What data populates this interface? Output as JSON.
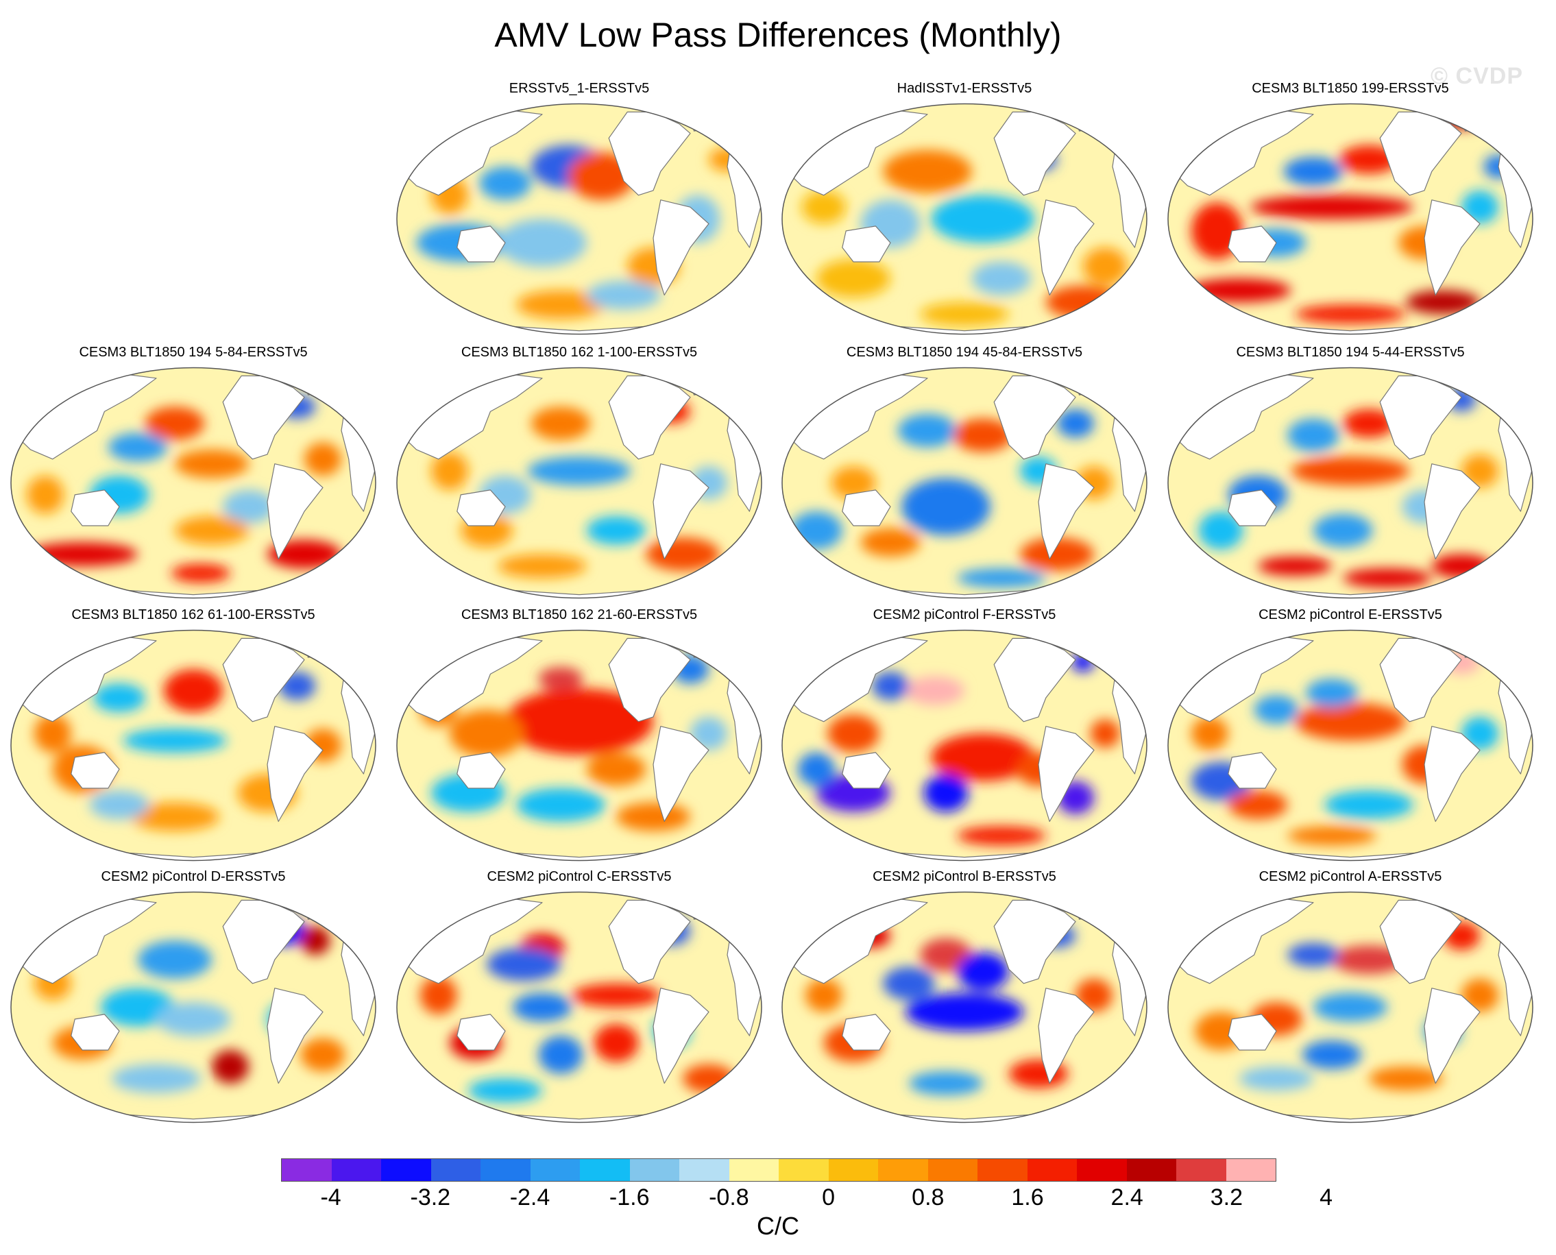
{
  "title": "AMV Low Pass Differences (Monthly)",
  "watermark": "© CVDP",
  "panels": [
    {
      "label": "ERSSTv5_1-ERSSTv5",
      "blobs": [
        [
          0.47,
          0.28,
          0.1,
          0.09,
          -2.4
        ],
        [
          0.56,
          0.32,
          0.09,
          0.1,
          2.0
        ],
        [
          0.3,
          0.35,
          0.07,
          0.07,
          -1.6
        ],
        [
          0.18,
          0.6,
          0.12,
          0.08,
          -1.6
        ],
        [
          0.4,
          0.6,
          0.12,
          0.1,
          -0.8
        ],
        [
          0.7,
          0.7,
          0.07,
          0.08,
          1.2
        ],
        [
          0.82,
          0.5,
          0.06,
          0.1,
          -0.8
        ],
        [
          0.9,
          0.25,
          0.05,
          0.05,
          1.2
        ],
        [
          0.45,
          0.86,
          0.12,
          0.06,
          1.0
        ],
        [
          0.62,
          0.82,
          0.1,
          0.06,
          -0.8
        ],
        [
          0.15,
          0.4,
          0.05,
          0.08,
          1.0
        ]
      ]
    },
    {
      "label": "HadISSTv1-ERSSTv5",
      "blobs": [
        [
          0.4,
          0.3,
          0.12,
          0.09,
          1.4
        ],
        [
          0.55,
          0.5,
          0.14,
          0.1,
          -1.2
        ],
        [
          0.3,
          0.52,
          0.08,
          0.1,
          -0.8
        ],
        [
          0.7,
          0.25,
          0.05,
          0.05,
          -2.4
        ],
        [
          0.82,
          0.85,
          0.1,
          0.07,
          2.0
        ],
        [
          0.88,
          0.7,
          0.06,
          0.08,
          1.2
        ],
        [
          0.2,
          0.75,
          0.1,
          0.08,
          0.8
        ],
        [
          0.6,
          0.75,
          0.08,
          0.07,
          -0.8
        ],
        [
          0.5,
          0.9,
          0.12,
          0.05,
          0.8
        ],
        [
          0.12,
          0.45,
          0.06,
          0.07,
          0.8
        ]
      ]
    },
    {
      "label": "CESM3 BLT1850 199-ERSSTv5",
      "blobs": [
        [
          0.45,
          0.45,
          0.22,
          0.05,
          2.6
        ],
        [
          0.14,
          0.55,
          0.07,
          0.12,
          2.4
        ],
        [
          0.2,
          0.8,
          0.14,
          0.05,
          2.8
        ],
        [
          0.5,
          0.9,
          0.15,
          0.04,
          2.4
        ],
        [
          0.75,
          0.85,
          0.1,
          0.05,
          3.0
        ],
        [
          0.4,
          0.3,
          0.08,
          0.06,
          -2.2
        ],
        [
          0.55,
          0.25,
          0.08,
          0.06,
          2.2
        ],
        [
          0.8,
          0.08,
          0.06,
          0.04,
          3.2
        ],
        [
          0.3,
          0.6,
          0.08,
          0.06,
          -1.6
        ],
        [
          0.7,
          0.6,
          0.07,
          0.07,
          1.6
        ],
        [
          0.85,
          0.45,
          0.05,
          0.07,
          -1.2
        ],
        [
          0.9,
          0.28,
          0.04,
          0.05,
          -2.0
        ]
      ]
    },
    {
      "label": "CESM3 BLT1850 194 5-84-ERSSTv5",
      "blobs": [
        [
          0.45,
          0.25,
          0.08,
          0.07,
          2.0
        ],
        [
          0.35,
          0.35,
          0.08,
          0.06,
          -1.6
        ],
        [
          0.55,
          0.42,
          0.1,
          0.06,
          1.6
        ],
        [
          0.2,
          0.8,
          0.15,
          0.05,
          2.6
        ],
        [
          0.8,
          0.8,
          0.1,
          0.06,
          2.8
        ],
        [
          0.52,
          0.88,
          0.08,
          0.04,
          2.4
        ],
        [
          0.78,
          0.18,
          0.05,
          0.05,
          -2.4
        ],
        [
          0.85,
          0.4,
          0.05,
          0.07,
          1.6
        ],
        [
          0.3,
          0.55,
          0.08,
          0.08,
          -1.2
        ],
        [
          0.65,
          0.6,
          0.07,
          0.07,
          -0.8
        ],
        [
          0.1,
          0.55,
          0.05,
          0.08,
          1.2
        ],
        [
          0.55,
          0.7,
          0.1,
          0.06,
          1.2
        ]
      ]
    },
    {
      "label": "CESM3 BLT1850 162 1-100-ERSSTv5",
      "blobs": [
        [
          0.5,
          0.45,
          0.14,
          0.06,
          -1.8
        ],
        [
          0.45,
          0.25,
          0.08,
          0.07,
          1.4
        ],
        [
          0.75,
          0.2,
          0.05,
          0.05,
          2.4
        ],
        [
          0.3,
          0.55,
          0.07,
          0.08,
          -0.8
        ],
        [
          0.78,
          0.8,
          0.1,
          0.07,
          2.0
        ],
        [
          0.4,
          0.85,
          0.12,
          0.05,
          1.2
        ],
        [
          0.15,
          0.45,
          0.05,
          0.08,
          1.2
        ],
        [
          0.6,
          0.7,
          0.08,
          0.06,
          -1.2
        ],
        [
          0.85,
          0.5,
          0.05,
          0.07,
          -0.8
        ],
        [
          0.25,
          0.7,
          0.07,
          0.07,
          1.0
        ]
      ]
    },
    {
      "label": "CESM3 BLT1850 194 45-84-ERSSTv5",
      "blobs": [
        [
          0.45,
          0.6,
          0.12,
          0.12,
          -2.0
        ],
        [
          0.4,
          0.28,
          0.08,
          0.07,
          -1.6
        ],
        [
          0.55,
          0.3,
          0.08,
          0.07,
          1.8
        ],
        [
          0.1,
          0.7,
          0.07,
          0.08,
          -1.8
        ],
        [
          0.75,
          0.8,
          0.1,
          0.07,
          2.0
        ],
        [
          0.3,
          0.75,
          0.08,
          0.06,
          1.6
        ],
        [
          0.6,
          0.9,
          0.12,
          0.04,
          -1.6
        ],
        [
          0.8,
          0.25,
          0.05,
          0.06,
          -2.0
        ],
        [
          0.85,
          0.5,
          0.05,
          0.07,
          1.2
        ],
        [
          0.2,
          0.5,
          0.06,
          0.07,
          1.2
        ],
        [
          0.7,
          0.45,
          0.05,
          0.06,
          -1.2
        ]
      ]
    },
    {
      "label": "CESM3 BLT1850 194 5-44-ERSSTv5",
      "blobs": [
        [
          0.5,
          0.45,
          0.16,
          0.06,
          2.0
        ],
        [
          0.4,
          0.3,
          0.07,
          0.07,
          -1.6
        ],
        [
          0.55,
          0.25,
          0.07,
          0.06,
          2.2
        ],
        [
          0.25,
          0.55,
          0.08,
          0.08,
          -2.0
        ],
        [
          0.35,
          0.85,
          0.1,
          0.04,
          2.8
        ],
        [
          0.6,
          0.9,
          0.12,
          0.04,
          2.6
        ],
        [
          0.8,
          0.85,
          0.08,
          0.05,
          2.6
        ],
        [
          0.48,
          0.7,
          0.08,
          0.07,
          -1.6
        ],
        [
          0.15,
          0.7,
          0.06,
          0.08,
          -1.2
        ],
        [
          0.8,
          0.15,
          0.04,
          0.05,
          -2.6
        ],
        [
          0.85,
          0.45,
          0.05,
          0.07,
          1.2
        ],
        [
          0.7,
          0.6,
          0.06,
          0.07,
          -0.8
        ]
      ]
    },
    {
      "label": "CESM3 BLT1850 162 61-100-ERSSTv5",
      "blobs": [
        [
          0.5,
          0.27,
          0.08,
          0.09,
          2.4
        ],
        [
          0.3,
          0.3,
          0.07,
          0.06,
          -1.2
        ],
        [
          0.45,
          0.48,
          0.14,
          0.05,
          -1.4
        ],
        [
          0.2,
          0.6,
          0.08,
          0.1,
          1.6
        ],
        [
          0.12,
          0.45,
          0.05,
          0.08,
          1.6
        ],
        [
          0.78,
          0.25,
          0.05,
          0.06,
          -2.6
        ],
        [
          0.85,
          0.5,
          0.05,
          0.07,
          1.6
        ],
        [
          0.7,
          0.7,
          0.08,
          0.08,
          1.2
        ],
        [
          0.45,
          0.8,
          0.12,
          0.06,
          1.0
        ],
        [
          0.3,
          0.75,
          0.08,
          0.06,
          -1.0
        ]
      ]
    },
    {
      "label": "CESM3 BLT1850 162 21-60-ERSSTv5",
      "blobs": [
        [
          0.5,
          0.4,
          0.2,
          0.14,
          2.4
        ],
        [
          0.45,
          0.22,
          0.06,
          0.05,
          3.6
        ],
        [
          0.25,
          0.45,
          0.1,
          0.1,
          1.6
        ],
        [
          0.2,
          0.7,
          0.1,
          0.08,
          -1.2
        ],
        [
          0.45,
          0.75,
          0.12,
          0.07,
          -1.4
        ],
        [
          0.7,
          0.8,
          0.1,
          0.06,
          1.6
        ],
        [
          0.8,
          0.18,
          0.05,
          0.06,
          -2.0
        ],
        [
          0.85,
          0.45,
          0.05,
          0.07,
          -0.8
        ],
        [
          0.6,
          0.6,
          0.08,
          0.07,
          1.6
        ],
        [
          0.12,
          0.35,
          0.05,
          0.07,
          1.6
        ]
      ]
    },
    {
      "label": "CESM2 piControl F-ERSSTv5",
      "blobs": [
        [
          0.42,
          0.27,
          0.08,
          0.06,
          3.8
        ],
        [
          0.3,
          0.25,
          0.05,
          0.06,
          -2.4
        ],
        [
          0.55,
          0.55,
          0.14,
          0.1,
          2.4
        ],
        [
          0.2,
          0.7,
          0.1,
          0.08,
          -3.2
        ],
        [
          0.45,
          0.7,
          0.06,
          0.08,
          -2.8
        ],
        [
          0.8,
          0.72,
          0.05,
          0.07,
          -3.2
        ],
        [
          0.7,
          0.6,
          0.06,
          0.07,
          2.0
        ],
        [
          0.2,
          0.45,
          0.07,
          0.08,
          2.0
        ],
        [
          0.6,
          0.88,
          0.12,
          0.04,
          2.2
        ],
        [
          0.1,
          0.6,
          0.05,
          0.07,
          -2.0
        ],
        [
          0.82,
          0.15,
          0.03,
          0.04,
          -3.0
        ],
        [
          0.88,
          0.45,
          0.04,
          0.06,
          2.0
        ]
      ]
    },
    {
      "label": "CESM2 piControl E-ERSSTv5",
      "blobs": [
        [
          0.5,
          0.4,
          0.15,
          0.08,
          2.0
        ],
        [
          0.45,
          0.28,
          0.07,
          0.06,
          -1.6
        ],
        [
          0.3,
          0.35,
          0.06,
          0.06,
          -1.6
        ],
        [
          0.15,
          0.65,
          0.08,
          0.08,
          -2.4
        ],
        [
          0.25,
          0.75,
          0.08,
          0.06,
          2.0
        ],
        [
          0.55,
          0.75,
          0.12,
          0.06,
          -1.4
        ],
        [
          0.7,
          0.58,
          0.06,
          0.08,
          2.0
        ],
        [
          0.8,
          0.15,
          0.05,
          0.05,
          4.0
        ],
        [
          0.85,
          0.45,
          0.05,
          0.07,
          -1.2
        ],
        [
          0.45,
          0.88,
          0.12,
          0.04,
          1.6
        ],
        [
          0.12,
          0.45,
          0.05,
          0.07,
          1.6
        ]
      ]
    },
    {
      "label": "CESM2 piControl D-ERSSTv5",
      "blobs": [
        [
          0.45,
          0.3,
          0.1,
          0.08,
          -1.8
        ],
        [
          0.35,
          0.5,
          0.1,
          0.08,
          -1.2
        ],
        [
          0.6,
          0.75,
          0.05,
          0.07,
          3.0
        ],
        [
          0.2,
          0.65,
          0.08,
          0.07,
          1.6
        ],
        [
          0.75,
          0.18,
          0.05,
          0.06,
          -2.8
        ],
        [
          0.83,
          0.22,
          0.04,
          0.06,
          3.2
        ],
        [
          0.5,
          0.55,
          0.1,
          0.07,
          -0.8
        ],
        [
          0.75,
          0.55,
          0.05,
          0.07,
          -1.2
        ],
        [
          0.85,
          0.7,
          0.06,
          0.07,
          1.6
        ],
        [
          0.12,
          0.4,
          0.05,
          0.07,
          1.2
        ],
        [
          0.4,
          0.8,
          0.12,
          0.06,
          -1.0
        ]
      ]
    },
    {
      "label": "CESM2 piControl C-ERSSTv5",
      "blobs": [
        [
          0.4,
          0.25,
          0.06,
          0.06,
          2.8
        ],
        [
          0.35,
          0.32,
          0.1,
          0.07,
          -2.6
        ],
        [
          0.6,
          0.45,
          0.12,
          0.05,
          2.4
        ],
        [
          0.4,
          0.5,
          0.08,
          0.06,
          -2.0
        ],
        [
          0.22,
          0.65,
          0.07,
          0.07,
          2.8
        ],
        [
          0.6,
          0.65,
          0.06,
          0.08,
          2.4
        ],
        [
          0.45,
          0.7,
          0.06,
          0.08,
          -2.0
        ],
        [
          0.75,
          0.18,
          0.05,
          0.06,
          -2.4
        ],
        [
          0.85,
          0.8,
          0.07,
          0.06,
          2.0
        ],
        [
          0.12,
          0.45,
          0.05,
          0.08,
          2.0
        ],
        [
          0.3,
          0.85,
          0.1,
          0.05,
          -1.2
        ],
        [
          0.75,
          0.6,
          0.05,
          0.07,
          -1.2
        ]
      ]
    },
    {
      "label": "CESM2 piControl B-ERSSTv5",
      "blobs": [
        [
          0.45,
          0.28,
          0.07,
          0.07,
          3.4
        ],
        [
          0.55,
          0.35,
          0.07,
          0.08,
          -2.8
        ],
        [
          0.5,
          0.52,
          0.16,
          0.08,
          -3.0
        ],
        [
          0.35,
          0.4,
          0.07,
          0.07,
          -2.4
        ],
        [
          0.25,
          0.2,
          0.05,
          0.05,
          2.6
        ],
        [
          0.75,
          0.2,
          0.05,
          0.05,
          -2.6
        ],
        [
          0.85,
          0.45,
          0.05,
          0.07,
          2.0
        ],
        [
          0.2,
          0.65,
          0.08,
          0.08,
          2.0
        ],
        [
          0.7,
          0.78,
          0.08,
          0.06,
          2.4
        ],
        [
          0.45,
          0.82,
          0.1,
          0.05,
          -1.6
        ],
        [
          0.12,
          0.45,
          0.05,
          0.07,
          1.6
        ]
      ]
    },
    {
      "label": "CESM2 piControl A-ERSSTv5",
      "blobs": [
        [
          0.55,
          0.3,
          0.1,
          0.06,
          3.6
        ],
        [
          0.4,
          0.28,
          0.07,
          0.05,
          -2.6
        ],
        [
          0.5,
          0.5,
          0.1,
          0.06,
          -1.6
        ],
        [
          0.3,
          0.55,
          0.07,
          0.07,
          1.8
        ],
        [
          0.15,
          0.6,
          0.07,
          0.08,
          1.6
        ],
        [
          0.45,
          0.7,
          0.08,
          0.06,
          -2.2
        ],
        [
          0.75,
          0.6,
          0.05,
          0.07,
          -1.6
        ],
        [
          0.8,
          0.2,
          0.05,
          0.06,
          2.4
        ],
        [
          0.85,
          0.45,
          0.05,
          0.07,
          1.6
        ],
        [
          0.65,
          0.8,
          0.1,
          0.05,
          1.6
        ],
        [
          0.3,
          0.8,
          0.1,
          0.05,
          -1.0
        ]
      ]
    }
  ],
  "colorbar": {
    "colors": [
      "#8a2be2",
      "#4b17ee",
      "#0d0dff",
      "#2e5fe6",
      "#1f7aee",
      "#2d9df0",
      "#13bdf5",
      "#82c6ec",
      "#b5dff4",
      "#fff7a2",
      "#fddc3a",
      "#fbbc0c",
      "#fe9d08",
      "#fa7a00",
      "#f64b00",
      "#f41f00",
      "#e10000",
      "#b80000",
      "#df3d3d",
      "#ffb2b2"
    ],
    "levels": [
      -4.4,
      -4,
      -3.6,
      -3.2,
      -2.8,
      -2.4,
      -2,
      -1.6,
      -1.2,
      -0.8,
      -0.4,
      0,
      0.4,
      0.8,
      1.2,
      1.6,
      2,
      2.4,
      2.8,
      3.2,
      3.6,
      4,
      4.4
    ],
    "tick_labels": [
      "-4",
      "-3.2",
      "-2.4",
      "-1.6",
      "-0.8",
      "0",
      "0.8",
      "1.6",
      "2.4",
      "3.2",
      "4"
    ],
    "units": "C/C"
  }
}
